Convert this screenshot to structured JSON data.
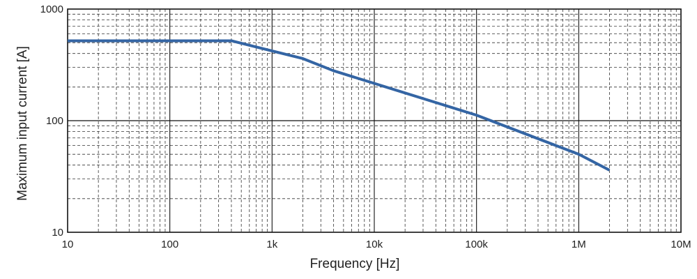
{
  "chart_data": {
    "type": "line",
    "x_scale": "log",
    "y_scale": "log",
    "xlim": [
      10,
      10000000
    ],
    "ylim": [
      10,
      1000
    ],
    "xlabel": "Frequency [Hz]",
    "ylabel": "Maximum input current [A]",
    "x_tick_values": [
      10,
      100,
      1000,
      10000,
      100000,
      1000000,
      10000000
    ],
    "x_tick_labels": [
      "10",
      "100",
      "1k",
      "10k",
      "100k",
      "1M",
      "10M"
    ],
    "y_tick_values": [
      10,
      100,
      1000
    ],
    "y_tick_labels": [
      "10",
      "100",
      "1000"
    ],
    "grid": true,
    "series": [
      {
        "name": "Maximum input current",
        "color": "#3465a4",
        "x": [
          10,
          400,
          2000,
          4000,
          100000,
          1000000,
          2000000
        ],
        "y": [
          520,
          520,
          360,
          280,
          112,
          50,
          36
        ]
      }
    ]
  }
}
